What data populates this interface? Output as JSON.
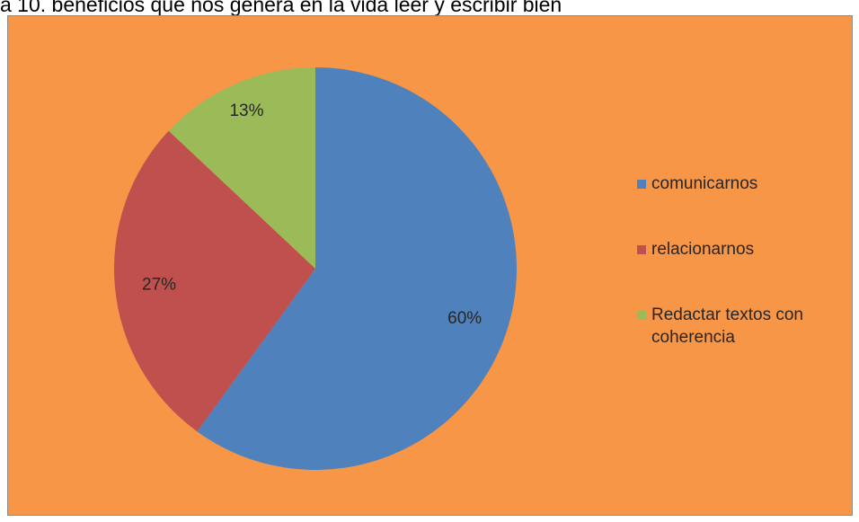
{
  "caption": "a 10. beneficios que nos genera en la vida leer y escribir bien",
  "chart_data": {
    "type": "pie",
    "title": "",
    "categories": [
      "comunicarnos",
      "relacionarnos",
      "Redactar textos con coherencia"
    ],
    "values": [
      60,
      27,
      13
    ],
    "labels": [
      "60%",
      "27%",
      "13%"
    ],
    "colors": [
      "#4f81bd",
      "#c0504d",
      "#9bbb59"
    ],
    "start_angle_deg": 0,
    "direction": "clockwise",
    "legend_position": "right",
    "background_color": "#f79646"
  }
}
